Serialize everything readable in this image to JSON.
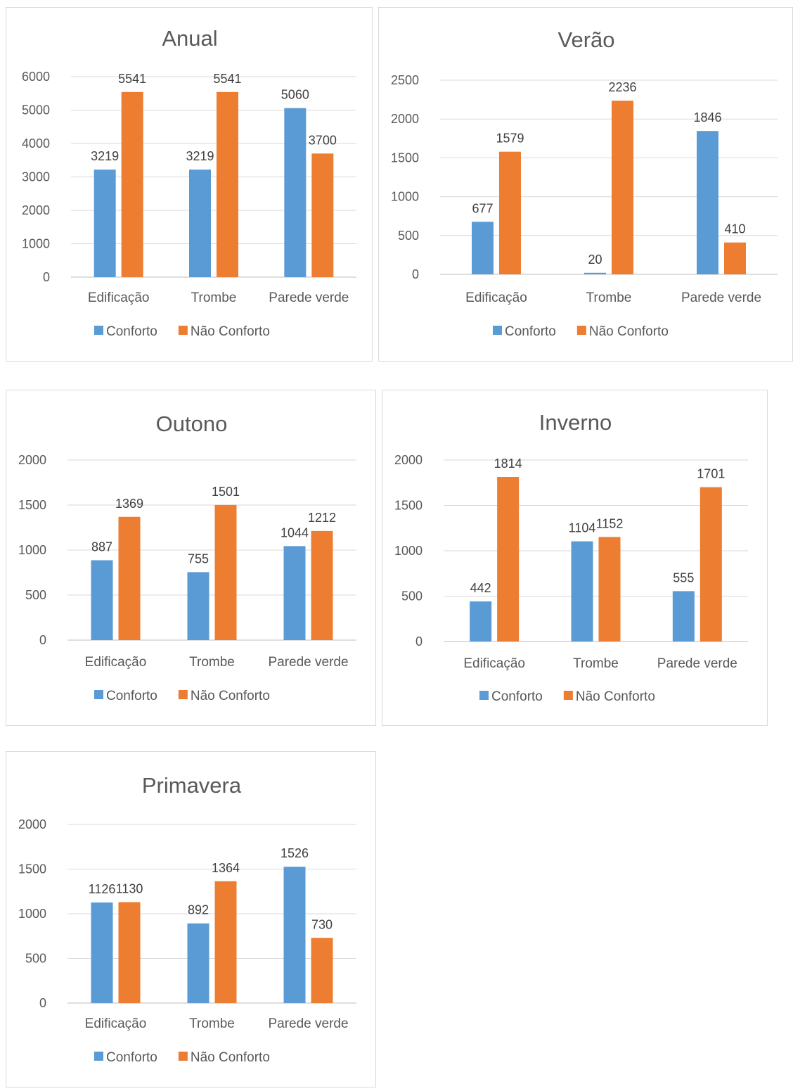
{
  "colors": {
    "conforto": "#5b9bd5",
    "nao_conforto": "#ed7d31",
    "grid": "#d9d9d9",
    "axis": "#bfbfbf"
  },
  "chart_data": [
    {
      "type": "bar",
      "title": "Anual",
      "categories": [
        "Edificação",
        "Trombe",
        "Parede verde"
      ],
      "series": [
        {
          "name": "Conforto",
          "values": [
            3219,
            3219,
            5060
          ]
        },
        {
          "name": "Não Conforto",
          "values": [
            5541,
            5541,
            3700
          ]
        }
      ],
      "ylim": [
        0,
        6000
      ],
      "yticks": [
        0,
        1000,
        2000,
        3000,
        4000,
        5000,
        6000
      ],
      "grid": true,
      "legend": "bottom"
    },
    {
      "type": "bar",
      "title": "Verão",
      "categories": [
        "Edificação",
        "Trombe",
        "Parede verde"
      ],
      "series": [
        {
          "name": "Conforto",
          "values": [
            677,
            20,
            1846
          ]
        },
        {
          "name": "Não Conforto",
          "values": [
            1579,
            2236,
            410
          ]
        }
      ],
      "ylim": [
        0,
        2500
      ],
      "yticks": [
        0,
        500,
        1000,
        1500,
        2000,
        2500
      ],
      "grid": true,
      "legend": "bottom"
    },
    {
      "type": "bar",
      "title": "Outono",
      "categories": [
        "Edificação",
        "Trombe",
        "Parede verde"
      ],
      "series": [
        {
          "name": "Conforto",
          "values": [
            887,
            755,
            1044
          ]
        },
        {
          "name": "Não Conforto",
          "values": [
            1369,
            1501,
            1212
          ]
        }
      ],
      "ylim": [
        0,
        2000
      ],
      "yticks": [
        0,
        500,
        1000,
        1500,
        2000
      ],
      "grid": true,
      "legend": "bottom"
    },
    {
      "type": "bar",
      "title": "Inverno",
      "categories": [
        "Edificação",
        "Trombe",
        "Parede verde"
      ],
      "series": [
        {
          "name": "Conforto",
          "values": [
            442,
            1104,
            555
          ]
        },
        {
          "name": "Não Conforto",
          "values": [
            1814,
            1152,
            1701
          ]
        }
      ],
      "ylim": [
        0,
        2000
      ],
      "yticks": [
        0,
        500,
        1000,
        1500,
        2000
      ],
      "grid": true,
      "legend": "bottom"
    },
    {
      "type": "bar",
      "title": "Primavera",
      "categories": [
        "Edificação",
        "Trombe",
        "Parede verde"
      ],
      "series": [
        {
          "name": "Conforto",
          "values": [
            1126,
            892,
            1526
          ]
        },
        {
          "name": "Não Conforto",
          "values": [
            1130,
            1364,
            730
          ]
        }
      ],
      "ylim": [
        0,
        2000
      ],
      "yticks": [
        0,
        500,
        1000,
        1500,
        2000
      ],
      "grid": true,
      "legend": "bottom"
    }
  ]
}
